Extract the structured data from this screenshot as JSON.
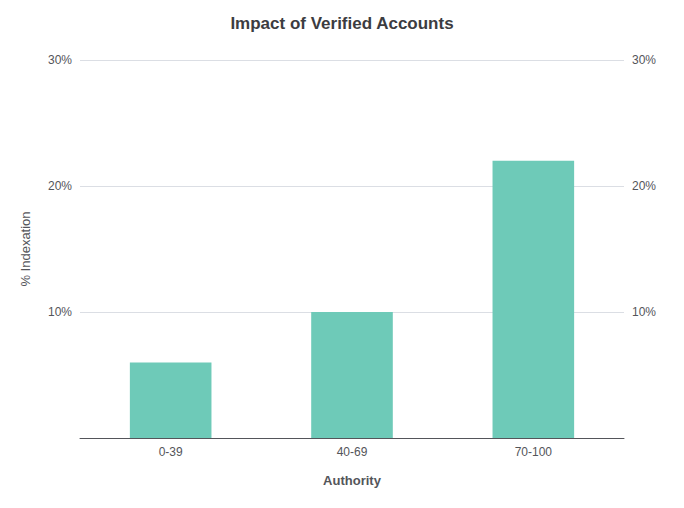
{
  "chart_data": {
    "type": "bar",
    "title": "Impact of Verified Accounts",
    "xlabel": "Authority",
    "ylabel": "% Indexation",
    "categories": [
      "0-39",
      "40-69",
      "70-100"
    ],
    "values": [
      6.0,
      10.0,
      22.0
    ],
    "color": "#6ecab8",
    "ylim": [
      0,
      30
    ],
    "yticks": [
      {
        "value": 0,
        "label": ""
      },
      {
        "value": 10,
        "label": "10%"
      },
      {
        "value": 20,
        "label": "20%"
      },
      {
        "value": 30,
        "label": "30%"
      }
    ],
    "y2lim": [
      0,
      30
    ],
    "y2ticks": [
      {
        "value": 0,
        "label": ""
      },
      {
        "value": 10,
        "label": "10%"
      },
      {
        "value": 20,
        "label": "20%"
      },
      {
        "value": 30,
        "label": "30%"
      }
    ],
    "grid": true
  }
}
